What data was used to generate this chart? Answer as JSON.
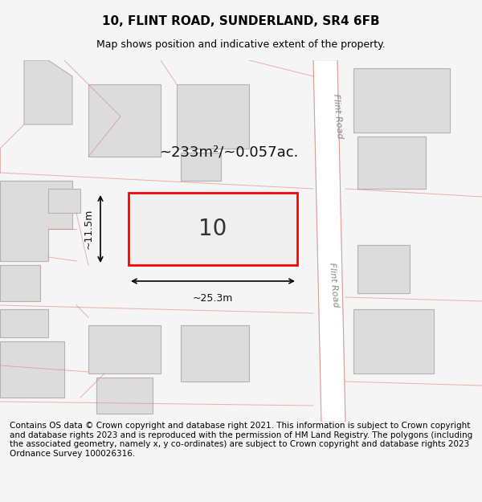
{
  "title": "10, FLINT ROAD, SUNDERLAND, SR4 6FB",
  "subtitle": "Map shows position and indicative extent of the property.",
  "title_fontsize": 11,
  "subtitle_fontsize": 9,
  "footer_text": "Contains OS data © Crown copyright and database right 2021. This information is subject to Crown copyright and database rights 2023 and is reproduced with the permission of HM Land Registry. The polygons (including the associated geometry, namely x, y co-ordinates) are subject to Crown copyright and database rights 2023 Ordnance Survey 100026316.",
  "footer_fontsize": 7.5,
  "bg_color": "#f5f5f5",
  "map_bg": "#f0efef",
  "road_color": "#ffffff",
  "building_fill": "#dcdcdc",
  "building_edge": "#c0b8b8",
  "highlight_fill": "#f0efef",
  "highlight_edge": "#ff0000",
  "road_line_color": "#f0a0a0",
  "area_label": "~233m²/~0.057ac.",
  "property_label": "10",
  "dim_width": "~25.3m",
  "dim_height": "~11.5m",
  "road_label": "Flint Road"
}
